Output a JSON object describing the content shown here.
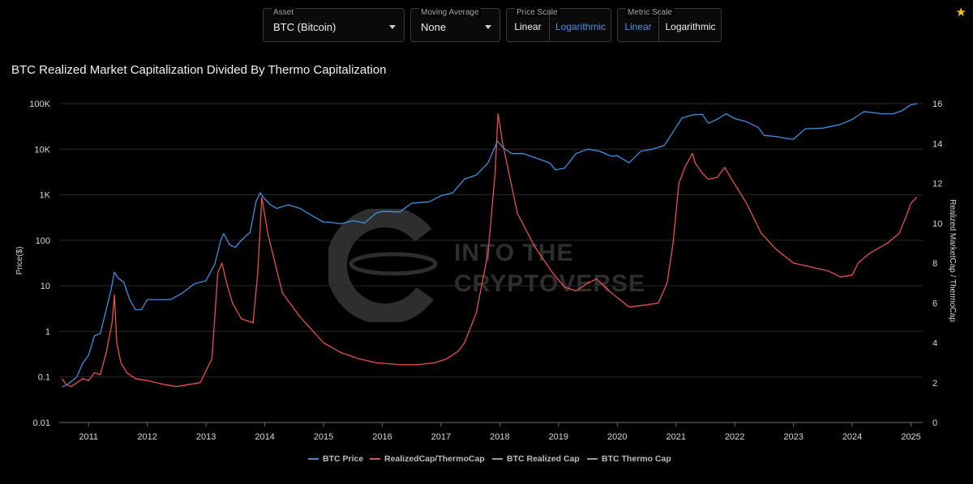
{
  "controls": {
    "asset": {
      "label": "Asset",
      "value": "BTC (Bitcoin)"
    },
    "moving_average": {
      "label": "Moving Average",
      "value": "None"
    },
    "price_scale": {
      "label": "Price Scale",
      "options": [
        "Linear",
        "Logarithmic"
      ],
      "selected": "Logarithmic"
    },
    "metric_scale": {
      "label": "Metric Scale",
      "options": [
        "Linear",
        "Logarithmic"
      ],
      "selected": "Linear"
    }
  },
  "colors": {
    "price": "#3d8fe0",
    "ratio": "#e8504a",
    "grid": "#2a2a2a",
    "text": "#e6e6e6",
    "accent": "#4a90e2",
    "star": "#f5c518"
  },
  "watermark": {
    "line1": "INTO THE",
    "line2": "CRYPTOVERSE"
  },
  "chart_data": {
    "type": "line",
    "title": "BTC Realized Market Capitalization Divided By Thermo Capitalization",
    "ylabel": "Price($)",
    "y2label": "Realized MarketCap / ThermoCap",
    "y_scale": "log",
    "ylim": [
      0.01,
      100000
    ],
    "yticks": [
      "0.01",
      "0.1",
      "1",
      "10",
      "100",
      "1K",
      "10K",
      "100K"
    ],
    "y2lim": [
      0,
      16
    ],
    "y2ticks": [
      "0",
      "2",
      "4",
      "6",
      "8",
      "10",
      "12",
      "14",
      "16"
    ],
    "xlim": [
      2010.5,
      2025.2
    ],
    "xticks": [
      "2011",
      "2012",
      "2013",
      "2014",
      "2015",
      "2016",
      "2017",
      "2018",
      "2019",
      "2020",
      "2021",
      "2022",
      "2023",
      "2024",
      "2025"
    ],
    "grid": true,
    "legend_position": "bottom-center",
    "legend": [
      "BTC Price",
      "RealizedCap/ThermoCap",
      "BTC Realized Cap",
      "BTC Thermo Cap"
    ],
    "series": [
      {
        "name": "BTC Price",
        "axis": "left",
        "x": [
          2010.55,
          2010.65,
          2010.8,
          2010.9,
          2011.0,
          2011.1,
          2011.2,
          2011.3,
          2011.38,
          2011.44,
          2011.5,
          2011.6,
          2011.7,
          2011.8,
          2011.9,
          2012.0,
          2012.2,
          2012.4,
          2012.6,
          2012.8,
          2013.0,
          2013.15,
          2013.25,
          2013.3,
          2013.4,
          2013.5,
          2013.6,
          2013.75,
          2013.85,
          2013.92,
          2014.0,
          2014.1,
          2014.2,
          2014.4,
          2014.6,
          2014.8,
          2015.0,
          2015.1,
          2015.3,
          2015.5,
          2015.7,
          2015.9,
          2016.0,
          2016.3,
          2016.5,
          2016.8,
          2017.0,
          2017.2,
          2017.4,
          2017.6,
          2017.8,
          2017.96,
          2018.05,
          2018.2,
          2018.4,
          2018.6,
          2018.85,
          2018.95,
          2019.1,
          2019.3,
          2019.5,
          2019.7,
          2019.9,
          2020.0,
          2020.2,
          2020.4,
          2020.6,
          2020.8,
          2021.0,
          2021.1,
          2021.3,
          2021.45,
          2021.55,
          2021.7,
          2021.85,
          2022.0,
          2022.2,
          2022.4,
          2022.5,
          2022.7,
          2022.9,
          2023.0,
          2023.2,
          2023.5,
          2023.8,
          2024.0,
          2024.2,
          2024.5,
          2024.7,
          2024.85,
          2025.0,
          2025.1
        ],
        "values": [
          0.06,
          0.07,
          0.1,
          0.2,
          0.3,
          0.8,
          0.9,
          3,
          8,
          20,
          15,
          12,
          5,
          3,
          3,
          5,
          5,
          5,
          7,
          11,
          13,
          30,
          100,
          140,
          80,
          70,
          100,
          150,
          700,
          1100,
          800,
          600,
          500,
          600,
          500,
          350,
          250,
          250,
          230,
          270,
          240,
          400,
          430,
          420,
          650,
          700,
          950,
          1100,
          2200,
          2700,
          5000,
          15000,
          11000,
          8000,
          8000,
          6500,
          5000,
          3500,
          3800,
          8000,
          10000,
          9000,
          7000,
          7200,
          5000,
          9000,
          10000,
          12000,
          30000,
          48000,
          57000,
          58000,
          37000,
          45000,
          60000,
          47000,
          40000,
          30000,
          20000,
          19000,
          17000,
          16500,
          28000,
          29000,
          35000,
          45000,
          67000,
          60000,
          60000,
          70000,
          95000,
          100000
        ]
      },
      {
        "name": "RealizedCap/ThermoCap",
        "axis": "right",
        "x": [
          2010.55,
          2010.62,
          2010.7,
          2010.8,
          2010.9,
          2011.0,
          2011.1,
          2011.2,
          2011.3,
          2011.4,
          2011.44,
          2011.48,
          2011.55,
          2011.65,
          2011.8,
          2012.0,
          2012.3,
          2012.5,
          2012.7,
          2012.9,
          2013.1,
          2013.2,
          2013.27,
          2013.35,
          2013.45,
          2013.6,
          2013.8,
          2013.88,
          2013.95,
          2014.05,
          2014.3,
          2014.6,
          2015.0,
          2015.3,
          2015.6,
          2015.9,
          2016.3,
          2016.6,
          2016.9,
          2017.1,
          2017.3,
          2017.4,
          2017.6,
          2017.8,
          2017.92,
          2017.97,
          2018.05,
          2018.3,
          2018.6,
          2018.9,
          2019.1,
          2019.3,
          2019.5,
          2019.65,
          2019.9,
          2020.2,
          2020.5,
          2020.7,
          2020.85,
          2020.95,
          2021.05,
          2021.15,
          2021.28,
          2021.33,
          2021.45,
          2021.55,
          2021.7,
          2021.83,
          2021.95,
          2022.2,
          2022.45,
          2022.7,
          2023.0,
          2023.3,
          2023.6,
          2023.8,
          2024.0,
          2024.1,
          2024.3,
          2024.6,
          2024.8,
          2024.9,
          2025.0,
          2025.1
        ],
        "values": [
          2.2,
          1.9,
          1.8,
          2.0,
          2.2,
          2.1,
          2.5,
          2.4,
          3.5,
          5.0,
          6.4,
          4.0,
          3.0,
          2.5,
          2.2,
          2.1,
          1.9,
          1.8,
          1.9,
          2.0,
          3.2,
          7.5,
          8.0,
          7.0,
          6.0,
          5.2,
          5.0,
          7.5,
          11.3,
          9.5,
          6.5,
          5.3,
          4.0,
          3.5,
          3.2,
          3.0,
          2.9,
          2.9,
          3.0,
          3.2,
          3.6,
          4.0,
          5.5,
          8.5,
          12.5,
          15.5,
          14.0,
          10.5,
          8.8,
          7.5,
          6.8,
          6.6,
          7.0,
          7.2,
          6.5,
          5.8,
          5.9,
          6.0,
          7.0,
          9.0,
          12.0,
          12.8,
          13.5,
          13.0,
          12.5,
          12.2,
          12.3,
          12.8,
          12.2,
          11.0,
          9.5,
          8.7,
          8.0,
          7.8,
          7.6,
          7.3,
          7.4,
          8.0,
          8.5,
          9.0,
          9.5,
          10.2,
          11.0,
          11.3
        ]
      }
    ]
  }
}
